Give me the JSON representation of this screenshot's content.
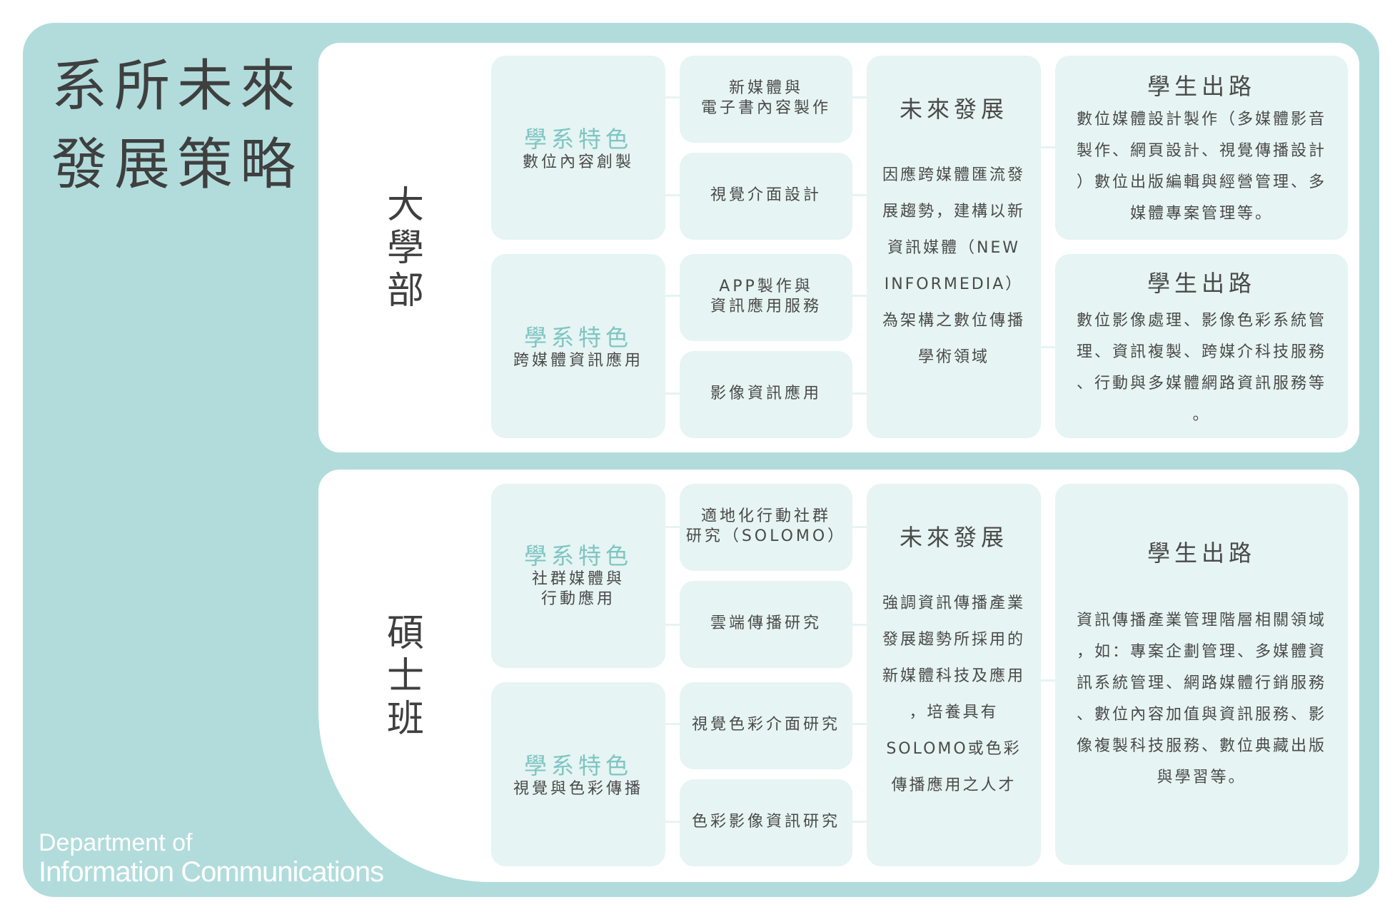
{
  "title": {
    "line1": "系所未來",
    "line2": "發展策略"
  },
  "department": {
    "line1": "Department of",
    "line2": "Information Communications"
  },
  "undergrad": {
    "level": [
      "大",
      "學",
      "部"
    ],
    "features": [
      {
        "title": "學系特色",
        "subtitle": "數位內容創製"
      },
      {
        "title": "學系特色",
        "subtitle": "跨媒體資訊應用"
      }
    ],
    "items": [
      [
        "新媒體與",
        "電子書內容製作"
      ],
      [
        "視覺介面設計"
      ],
      [
        "APP製作與",
        "資訊應用服務"
      ],
      [
        "影像資訊應用"
      ]
    ],
    "future": {
      "title": "未來發展",
      "body": [
        "因應跨媒體匯流發",
        "展趨勢，建構以新",
        "資訊媒體（NEW",
        "INFORMEDIA）",
        "為架構之數位傳播",
        "學術領域"
      ]
    },
    "careers": [
      {
        "title": "學生出路",
        "body": [
          "數位媒體設計製作（多媒體影音",
          "製作、網頁設計、視覺傳播設計",
          "）數位出版編輯與經營管理、多",
          "媒體專案管理等。"
        ]
      },
      {
        "title": "學生出路",
        "body": [
          "數位影像處理、影像色彩系統管",
          "理、資訊複製、跨媒介科技服務",
          "、行動與多媒體網路資訊服務等",
          "。"
        ]
      }
    ]
  },
  "master": {
    "level": [
      "碩",
      "士",
      "班"
    ],
    "features": [
      {
        "title": "學系特色",
        "subtitle": [
          "社群媒體與",
          "行動應用"
        ]
      },
      {
        "title": "學系特色",
        "subtitle": [
          "視覺與色彩傳播"
        ]
      }
    ],
    "items": [
      [
        "適地化行動社群",
        "研究（SOLOMO）"
      ],
      [
        "雲端傳播研究"
      ],
      [
        "視覺色彩介面研究"
      ],
      [
        "色彩影像資訊研究"
      ]
    ],
    "future": {
      "title": "未來發展",
      "body": [
        "強調資訊傳播產業",
        "發展趨勢所採用的",
        "新媒體科技及應用",
        "，培養具有",
        "SOLOMO或色彩",
        "傳播應用之人才"
      ]
    },
    "career": {
      "title": "學生出路",
      "body": [
        "資訊傳播產業管理階層相關領域",
        "，如：專案企劃管理、多媒體資",
        "訊系統管理、網路媒體行銷服務",
        "、數位內容加值與資訊服務、影",
        "像複製科技服務、數位典藏出版",
        "與學習等。"
      ]
    }
  },
  "colors": {
    "frame": "#b2dcdc",
    "box": "#e6f4f3",
    "accent": "#7ec5c2",
    "text": "#4a4a4a"
  }
}
